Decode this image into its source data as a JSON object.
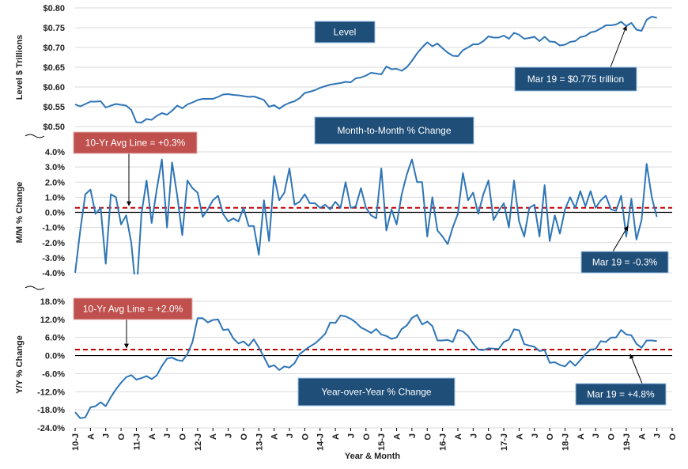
{
  "chart_data": [
    {
      "type": "line",
      "id": "level",
      "ylabel": "Level $ Trillions",
      "ylim": [
        0.5,
        0.8
      ],
      "yticks": [
        0.5,
        0.55,
        0.6,
        0.65,
        0.7,
        0.75,
        0.8
      ],
      "ytick_labels": [
        "$0.50",
        "$0.55",
        "$0.60",
        "$0.65",
        "$0.70",
        "$0.75",
        "$0.80"
      ],
      "grid": true,
      "series_color": "#2e75b6",
      "title_box": "Level",
      "callout": "Mar 19 = $0.775 trillion",
      "values": [
        0.556,
        0.551,
        0.557,
        0.563,
        0.563,
        0.564,
        0.548,
        0.553,
        0.557,
        0.555,
        0.553,
        0.542,
        0.511,
        0.51,
        0.519,
        0.517,
        0.527,
        0.534,
        0.53,
        0.54,
        0.553,
        0.546,
        0.556,
        0.561,
        0.567,
        0.57,
        0.57,
        0.57,
        0.575,
        0.581,
        0.582,
        0.58,
        0.579,
        0.577,
        0.575,
        0.576,
        0.572,
        0.567,
        0.55,
        0.554,
        0.545,
        0.554,
        0.56,
        0.564,
        0.572,
        0.585,
        0.588,
        0.592,
        0.598,
        0.602,
        0.606,
        0.608,
        0.61,
        0.613,
        0.612,
        0.622,
        0.624,
        0.629,
        0.636,
        0.634,
        0.632,
        0.652,
        0.645,
        0.646,
        0.641,
        0.65,
        0.666,
        0.685,
        0.7,
        0.713,
        0.703,
        0.71,
        0.698,
        0.687,
        0.679,
        0.678,
        0.693,
        0.7,
        0.708,
        0.708,
        0.716,
        0.728,
        0.725,
        0.725,
        0.73,
        0.722,
        0.737,
        0.732,
        0.722,
        0.724,
        0.727,
        0.716,
        0.727,
        0.715,
        0.714,
        0.705,
        0.707,
        0.714,
        0.716,
        0.726,
        0.729,
        0.738,
        0.741,
        0.748,
        0.756,
        0.756,
        0.758,
        0.765,
        0.754,
        0.762,
        0.745,
        0.742,
        0.77,
        0.778,
        0.775
      ]
    },
    {
      "type": "line",
      "id": "mm",
      "ylabel": "M/M % Change",
      "ylim": [
        -4.0,
        4.0
      ],
      "yticks": [
        -4,
        -3,
        -2,
        -1,
        0,
        1,
        2,
        3,
        4
      ],
      "ytick_labels": [
        "-4.0%",
        "-3.0%",
        "-2.0%",
        "-1.0%",
        "0.0%",
        "1.0%",
        "2.0%",
        "3.0%",
        "4.0%"
      ],
      "grid": true,
      "series_color": "#2e75b6",
      "avg_line": 0.3,
      "avg_label": "10-Yr Avg Line = +0.3%",
      "title_box": "Month-to-Month % Change",
      "callout": "Mar 19 = -0.3%",
      "values": [
        -4.0,
        -1.2,
        1.2,
        1.5,
        -0.1,
        0.3,
        -3.4,
        1.2,
        1.0,
        -0.8,
        -0.2,
        -2.0,
        -5.5,
        -0.1,
        2.1,
        -0.7,
        1.5,
        3.5,
        -1.0,
        3.3,
        1.1,
        -1.5,
        2.1,
        1.6,
        1.3,
        -0.3,
        0.2,
        0.8,
        1.1,
        -0.1,
        -0.6,
        -0.4,
        -0.6,
        0.3,
        -0.9,
        -0.9,
        -2.8,
        0.8,
        -1.9,
        2.4,
        0.8,
        1.3,
        2.9,
        0.5,
        0.7,
        1.2,
        0.6,
        0.6,
        0.3,
        0.5,
        0.2,
        0.7,
        0.3,
        2.0,
        0.3,
        0.4,
        1.6,
        0.3,
        -0.2,
        -0.4,
        2.9,
        -1.2,
        0.2,
        -0.8,
        1.2,
        2.5,
        3.5,
        2.0,
        2.0,
        -1.6,
        1.0,
        -1.2,
        -1.6,
        -2.1,
        -1.0,
        -0.1,
        2.6,
        0.8,
        1.3,
        -0.1,
        1.2,
        2.1,
        -0.5,
        0.1,
        0.6,
        -1.0,
        2.1,
        -0.6,
        -1.6,
        0.3,
        0.5,
        -1.6,
        1.8,
        -1.9,
        -0.2,
        -1.4,
        0.2,
        1.0,
        0.3,
        1.4,
        0.4,
        1.4,
        0.3,
        0.8,
        1.1,
        0.2,
        0.1,
        1.1,
        -1.6,
        0.9,
        -1.8,
        -0.5,
        3.2,
        1.0,
        -0.3
      ]
    },
    {
      "type": "line",
      "id": "yy",
      "ylabel": "Y/Y % Change",
      "xlabel": "Year & Month",
      "ylim": [
        -24.0,
        18.0
      ],
      "yticks": [
        -24,
        -18,
        -12,
        -6,
        0,
        6,
        12,
        18
      ],
      "ytick_labels": [
        "-24.0%",
        "-18.0%",
        "-12.0%",
        "-6.0%",
        "0.0%",
        "6.0%",
        "12.0%",
        "18.0%"
      ],
      "grid": true,
      "series_color": "#2e75b6",
      "avg_line": 2.0,
      "avg_label": "10-Yr Avg Line = +2.0%",
      "title_box": "Year-over-Year % Change",
      "callout": "Mar 19 = +4.8%",
      "values": [
        -18.8,
        -20.8,
        -20.5,
        -17.2,
        -16.8,
        -15.5,
        -16.8,
        -13.8,
        -11.2,
        -9.0,
        -7.2,
        -6.5,
        -8.0,
        -7.5,
        -6.8,
        -7.8,
        -6.6,
        -3.5,
        -1.0,
        -0.7,
        -1.5,
        -1.8,
        0.5,
        4.5,
        12.4,
        12.4,
        11.0,
        11.8,
        12.0,
        8.5,
        8.7,
        5.7,
        4.0,
        4.7,
        3.2,
        5.4,
        2.7,
        -0.5,
        -3.8,
        -3.2,
        -4.8,
        -3.6,
        -4.0,
        -2.5,
        0.5,
        1.8,
        3.0,
        4.0,
        5.5,
        7.2,
        11.0,
        10.8,
        13.3,
        13.0,
        12.2,
        11.0,
        9.3,
        8.5,
        7.5,
        8.8,
        7.0,
        6.5,
        5.5,
        6.0,
        8.8,
        10.0,
        12.5,
        13.5,
        10.3,
        11.3,
        9.8,
        5.0,
        5.0,
        5.2,
        4.5,
        8.5,
        8.0,
        6.5,
        4.0,
        2.0,
        1.8,
        2.4,
        2.3,
        2.2,
        4.5,
        5.3,
        8.7,
        8.4,
        3.8,
        3.3,
        2.9,
        1.5,
        1.8,
        -2.4,
        -2.2,
        -3.1,
        -3.6,
        -1.8,
        -3.4,
        -1.5,
        0.5,
        2.0,
        2.2,
        4.8,
        4.5,
        6.0,
        6.0,
        8.5,
        7.0,
        6.7,
        3.9,
        2.6,
        5.0,
        5.0,
        4.8
      ]
    }
  ],
  "x_axis": {
    "tick_labels": [
      "10-J",
      "A",
      "J",
      "O",
      "11-J",
      "A",
      "J",
      "O",
      "12-J",
      "A",
      "J",
      "O",
      "13-J",
      "A",
      "J",
      "O",
      "14-J",
      "A",
      "J",
      "O",
      "15-J",
      "A",
      "J",
      "O",
      "16-J",
      "A",
      "J",
      "O",
      "17-J",
      "A",
      "J",
      "O",
      "18-J",
      "A",
      "J",
      "O",
      "19-J",
      "A",
      "J",
      "O"
    ],
    "months_per_tick": 3,
    "total_slots": 118,
    "xlabel": "Year & Month"
  },
  "colors": {
    "line": "#2e75b6",
    "avg_line": "#c00000",
    "box_blue": "#1f4e79",
    "box_red": "#c0504d"
  }
}
